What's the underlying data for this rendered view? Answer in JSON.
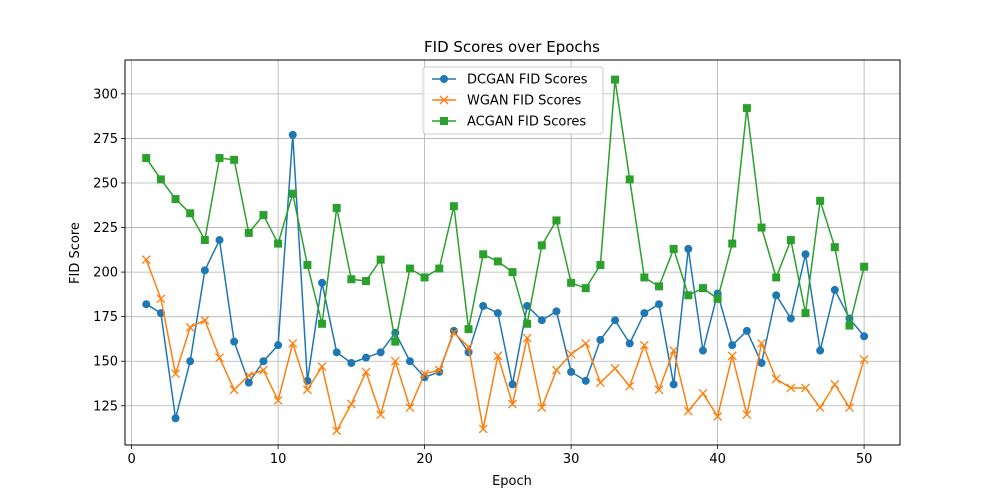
{
  "chart_data": {
    "type": "line",
    "title": "FID Scores over Epochs",
    "xlabel": "Epoch",
    "ylabel": "FID Score",
    "xlim": [
      -0.45,
      52.45
    ],
    "ylim": [
      103,
      319
    ],
    "x_ticks": [
      0,
      10,
      20,
      30,
      40,
      50
    ],
    "y_ticks": [
      125,
      150,
      175,
      200,
      225,
      250,
      275,
      300
    ],
    "grid": true,
    "legend_position": "top-center",
    "x": [
      1,
      2,
      3,
      4,
      5,
      6,
      7,
      8,
      9,
      10,
      11,
      12,
      13,
      14,
      15,
      16,
      17,
      18,
      19,
      20,
      21,
      22,
      23,
      24,
      25,
      26,
      27,
      28,
      29,
      30,
      31,
      32,
      33,
      34,
      35,
      36,
      37,
      38,
      39,
      40,
      41,
      42,
      43,
      44,
      45,
      46,
      47,
      48,
      49,
      50
    ],
    "series": [
      {
        "name": "DCGAN FID Scores",
        "color": "#1f77b4",
        "marker": "circle",
        "values": [
          182,
          177,
          118,
          150,
          201,
          218,
          161,
          138,
          150,
          159,
          277,
          139,
          194,
          155,
          149,
          152,
          155,
          166,
          150,
          141,
          144,
          167,
          155,
          181,
          177,
          137,
          181,
          173,
          178,
          144,
          139,
          162,
          173,
          160,
          177,
          182,
          137,
          213,
          156,
          188,
          159,
          167,
          149,
          187,
          174,
          210,
          156,
          190,
          174,
          164
        ]
      },
      {
        "name": "WGAN FID Scores",
        "color": "#ff7f0e",
        "marker": "x",
        "values": [
          207,
          185,
          143,
          169,
          173,
          152,
          134,
          142,
          145,
          128,
          160,
          134,
          147,
          111,
          126,
          144,
          120,
          150,
          124,
          143,
          145,
          166,
          158,
          112,
          153,
          126,
          163,
          124,
          145,
          154,
          160,
          138,
          146,
          136,
          159,
          134,
          156,
          122,
          132,
          119,
          153,
          120,
          160,
          140,
          135,
          135,
          124,
          137,
          124,
          151
        ]
      },
      {
        "name": "ACGAN FID Scores",
        "color": "#2ca02c",
        "marker": "square",
        "values": [
          264,
          252,
          241,
          233,
          218,
          264,
          263,
          222,
          232,
          216,
          244,
          204,
          171,
          236,
          196,
          195,
          207,
          161,
          202,
          197,
          202,
          237,
          168,
          210,
          206,
          200,
          171,
          215,
          229,
          194,
          191,
          204,
          308,
          252,
          197,
          192,
          213,
          187,
          191,
          185,
          216,
          292,
          225,
          197,
          218,
          177,
          240,
          214,
          170,
          203
        ]
      }
    ]
  }
}
